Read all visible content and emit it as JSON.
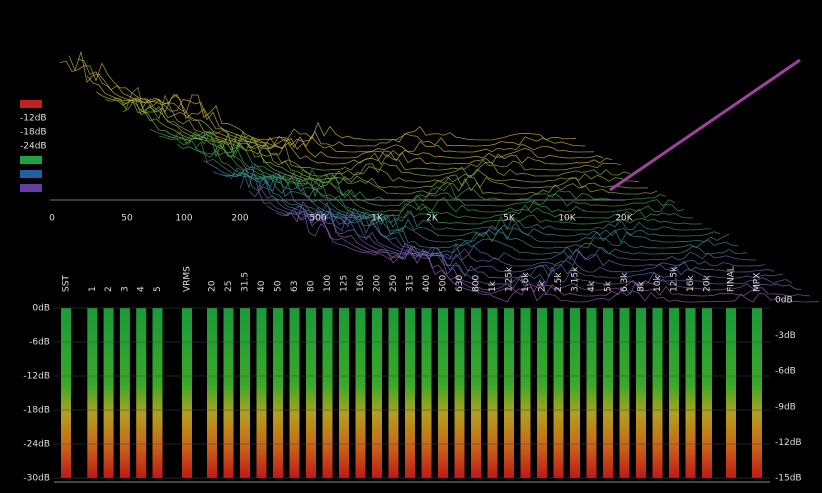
{
  "spectrum": {
    "db_labels": [
      "-12dB",
      "-18dB",
      "-24dB"
    ],
    "freq_labels": [
      "0",
      "50",
      "100",
      "200",
      "500",
      "1K",
      "2K",
      "5K",
      "10K",
      "20K"
    ]
  },
  "meters": {
    "channels": [
      "SST",
      "1",
      "2",
      "3",
      "4",
      "5",
      "VRMS",
      "20",
      "25",
      "31.5",
      "40",
      "50",
      "63",
      "80",
      "100",
      "125",
      "160",
      "200",
      "250",
      "315",
      "400",
      "500",
      "630",
      "800",
      "1k",
      "1.25k",
      "1.6k",
      "2k",
      "2.5k",
      "3.15k",
      "4k",
      "5k",
      "6.3k",
      "8k",
      "10k",
      "12.5k",
      "16k",
      "20k",
      "FINAL",
      "MPX"
    ],
    "left_scale": [
      "0dB",
      "-6dB",
      "-12dB",
      "-18dB",
      "-24dB",
      "-30dB"
    ],
    "right_scale": [
      "0dB",
      "-3dB",
      "-6dB",
      "-9dB",
      "-12dB",
      "-15dB"
    ]
  }
}
